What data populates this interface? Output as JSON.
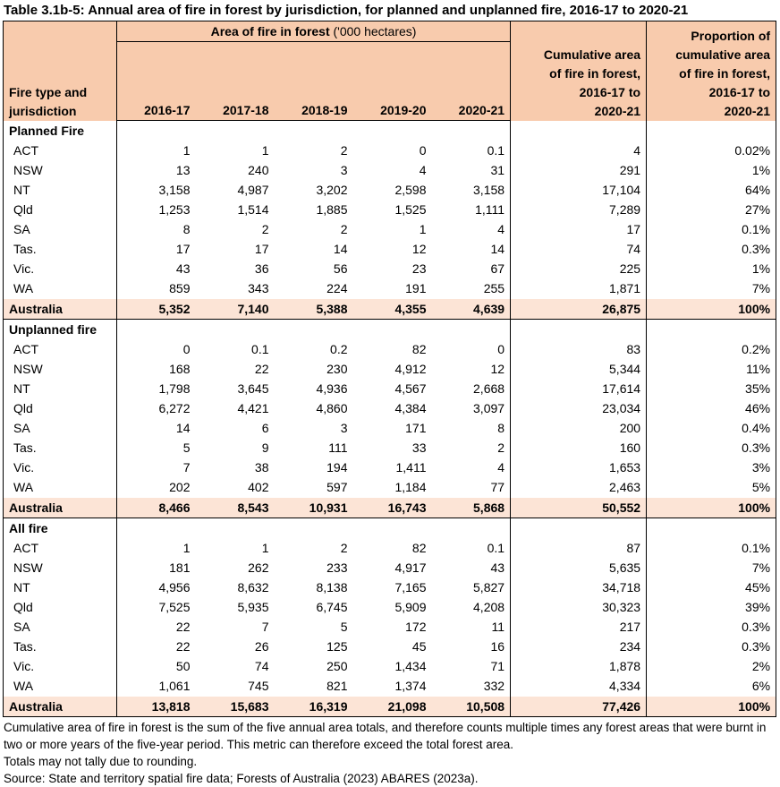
{
  "title": "Table 3.1b-5: Annual area of fire in forest by jurisdiction, for planned and unplanned fire, 2016-17 to 2020-21",
  "header": {
    "group_bold": "Area of fire in forest",
    "group_unit": " ('000 hectares)",
    "col0": [
      "Fire type and",
      "jurisdiction"
    ],
    "years": [
      "2016-17",
      "2017-18",
      "2018-19",
      "2019-20",
      "2020-21"
    ],
    "cumulative": [
      "Cumulative area",
      "of fire in forest,",
      "2016-17 to",
      "2020-21"
    ],
    "proportion": [
      "Proportion of",
      "cumulative area",
      "of fire in forest,",
      "2016-17 to",
      "2020-21"
    ]
  },
  "sections": [
    {
      "name": "Planned Fire",
      "rows": [
        [
          "ACT",
          "1",
          "1",
          "2",
          "0",
          "0.1",
          "4",
          "0.02%"
        ],
        [
          "NSW",
          "13",
          "240",
          "3",
          "4",
          "31",
          "291",
          "1%"
        ],
        [
          "NT",
          "3,158",
          "4,987",
          "3,202",
          "2,598",
          "3,158",
          "17,104",
          "64%"
        ],
        [
          "Qld",
          "1,253",
          "1,514",
          "1,885",
          "1,525",
          "1,111",
          "7,289",
          "27%"
        ],
        [
          "SA",
          "8",
          "2",
          "2",
          "1",
          "4",
          "17",
          "0.1%"
        ],
        [
          "Tas.",
          "17",
          "17",
          "14",
          "12",
          "14",
          "74",
          "0.3%"
        ],
        [
          "Vic.",
          "43",
          "36",
          "56",
          "23",
          "67",
          "225",
          "1%"
        ],
        [
          "WA",
          "859",
          "343",
          "224",
          "191",
          "255",
          "1,871",
          "7%"
        ]
      ],
      "total": [
        "Australia",
        "5,352",
        "7,140",
        "5,388",
        "4,355",
        "4,639",
        "26,875",
        "100%"
      ]
    },
    {
      "name": "Unplanned fire",
      "rows": [
        [
          "ACT",
          "0",
          "0.1",
          "0.2",
          "82",
          "0",
          "83",
          "0.2%"
        ],
        [
          "NSW",
          "168",
          "22",
          "230",
          "4,912",
          "12",
          "5,344",
          "11%"
        ],
        [
          "NT",
          "1,798",
          "3,645",
          "4,936",
          "4,567",
          "2,668",
          "17,614",
          "35%"
        ],
        [
          "Qld",
          "6,272",
          "4,421",
          "4,860",
          "4,384",
          "3,097",
          "23,034",
          "46%"
        ],
        [
          "SA",
          "14",
          "6",
          "3",
          "171",
          "8",
          "200",
          "0.4%"
        ],
        [
          "Tas.",
          "5",
          "9",
          "111",
          "33",
          "2",
          "160",
          "0.3%"
        ],
        [
          "Vic.",
          "7",
          "38",
          "194",
          "1,411",
          "4",
          "1,653",
          "3%"
        ],
        [
          "WA",
          "202",
          "402",
          "597",
          "1,184",
          "77",
          "2,463",
          "5%"
        ]
      ],
      "total": [
        "Australia",
        "8,466",
        "8,543",
        "10,931",
        "16,743",
        "5,868",
        "50,552",
        "100%"
      ]
    },
    {
      "name": "All fire",
      "rows": [
        [
          "ACT",
          "1",
          "1",
          "2",
          "82",
          "0.1",
          "87",
          "0.1%"
        ],
        [
          "NSW",
          "181",
          "262",
          "233",
          "4,917",
          "43",
          "5,635",
          "7%"
        ],
        [
          "NT",
          "4,956",
          "8,632",
          "8,138",
          "7,165",
          "5,827",
          "34,718",
          "45%"
        ],
        [
          "Qld",
          "7,525",
          "5,935",
          "6,745",
          "5,909",
          "4,208",
          "30,323",
          "39%"
        ],
        [
          "SA",
          "22",
          "7",
          "5",
          "172",
          "11",
          "217",
          "0.3%"
        ],
        [
          "Tas.",
          "22",
          "26",
          "125",
          "45",
          "16",
          "234",
          "0.3%"
        ],
        [
          "Vic.",
          "50",
          "74",
          "250",
          "1,434",
          "71",
          "1,878",
          "2%"
        ],
        [
          "WA",
          "1,061",
          "745",
          "821",
          "1,374",
          "332",
          "4,334",
          "6%"
        ]
      ],
      "total": [
        "Australia",
        "13,818",
        "15,683",
        "16,319",
        "21,098",
        "10,508",
        "77,426",
        "100%"
      ]
    }
  ],
  "notes": [
    "Cumulative area of fire in forest is the sum of the five annual area totals, and therefore counts multiple times any forest areas that were burnt in two or more years of the five-year period. This metric can therefore exceed the total forest area.",
    "Totals may not tally due to rounding.",
    "Source: State and territory spatial fire data; Forests of Australia (2023) ABARES (2023a)."
  ]
}
